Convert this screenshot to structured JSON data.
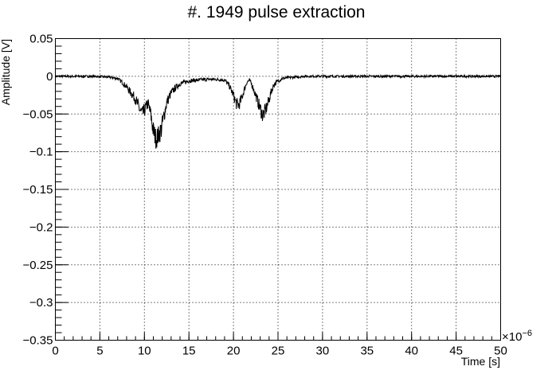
{
  "chart_data": {
    "type": "line",
    "title": "#. 1949 pulse extraction",
    "xlabel": "Time [s]",
    "ylabel": "Amplitude [V]",
    "x_multiplier_label": "×10",
    "x_multiplier_exponent": "−6",
    "xlim": [
      0,
      50
    ],
    "ylim": [
      -0.35,
      0.05
    ],
    "x_unit_scale": 1e-06,
    "grid": true,
    "x_ticks": [
      0,
      5,
      10,
      15,
      20,
      25,
      30,
      35,
      40,
      45,
      50
    ],
    "x_tick_labels": [
      "0",
      "5",
      "10",
      "15",
      "20",
      "25",
      "30",
      "35",
      "40",
      "45",
      "50"
    ],
    "y_ticks": [
      0.05,
      0,
      -0.05,
      -0.1,
      -0.15,
      -0.2,
      -0.25,
      -0.3,
      -0.35
    ],
    "y_tick_labels": [
      "0.05",
      "0",
      "−0.05",
      "−0.1",
      "−0.15",
      "−0.2",
      "−0.25",
      "−0.3",
      "−0.35"
    ],
    "series": [
      {
        "color": "#000000",
        "x": [
          0,
          2,
          4,
          6,
          7,
          7.5,
          8,
          8.5,
          9,
          9.5,
          9.8,
          10.1,
          10.4,
          10.7,
          11,
          11.3,
          11.6,
          11.9,
          12.2,
          12.5,
          13,
          13.5,
          14,
          15,
          16,
          17,
          18,
          19,
          19.5,
          20,
          20.3,
          20.6,
          20.9,
          21.2,
          21.5,
          21.8,
          22.1,
          22.4,
          22.7,
          23,
          23.3,
          23.6,
          23.9,
          24.2,
          24.5,
          25,
          25.5,
          26,
          27,
          28,
          30,
          33,
          36,
          40,
          44,
          47,
          50
        ],
        "y": [
          0,
          0,
          0,
          -0.001,
          -0.003,
          -0.008,
          -0.014,
          -0.022,
          -0.03,
          -0.045,
          -0.05,
          -0.043,
          -0.036,
          -0.05,
          -0.072,
          -0.083,
          -0.078,
          -0.07,
          -0.052,
          -0.035,
          -0.022,
          -0.015,
          -0.01,
          -0.006,
          -0.005,
          -0.004,
          -0.004,
          -0.005,
          -0.012,
          -0.025,
          -0.036,
          -0.038,
          -0.03,
          -0.018,
          -0.008,
          -0.005,
          -0.012,
          -0.022,
          -0.032,
          -0.043,
          -0.052,
          -0.045,
          -0.035,
          -0.022,
          -0.012,
          -0.006,
          -0.003,
          -0.002,
          -0.001,
          0,
          0,
          0,
          0,
          0,
          0,
          0,
          0
        ]
      }
    ]
  }
}
